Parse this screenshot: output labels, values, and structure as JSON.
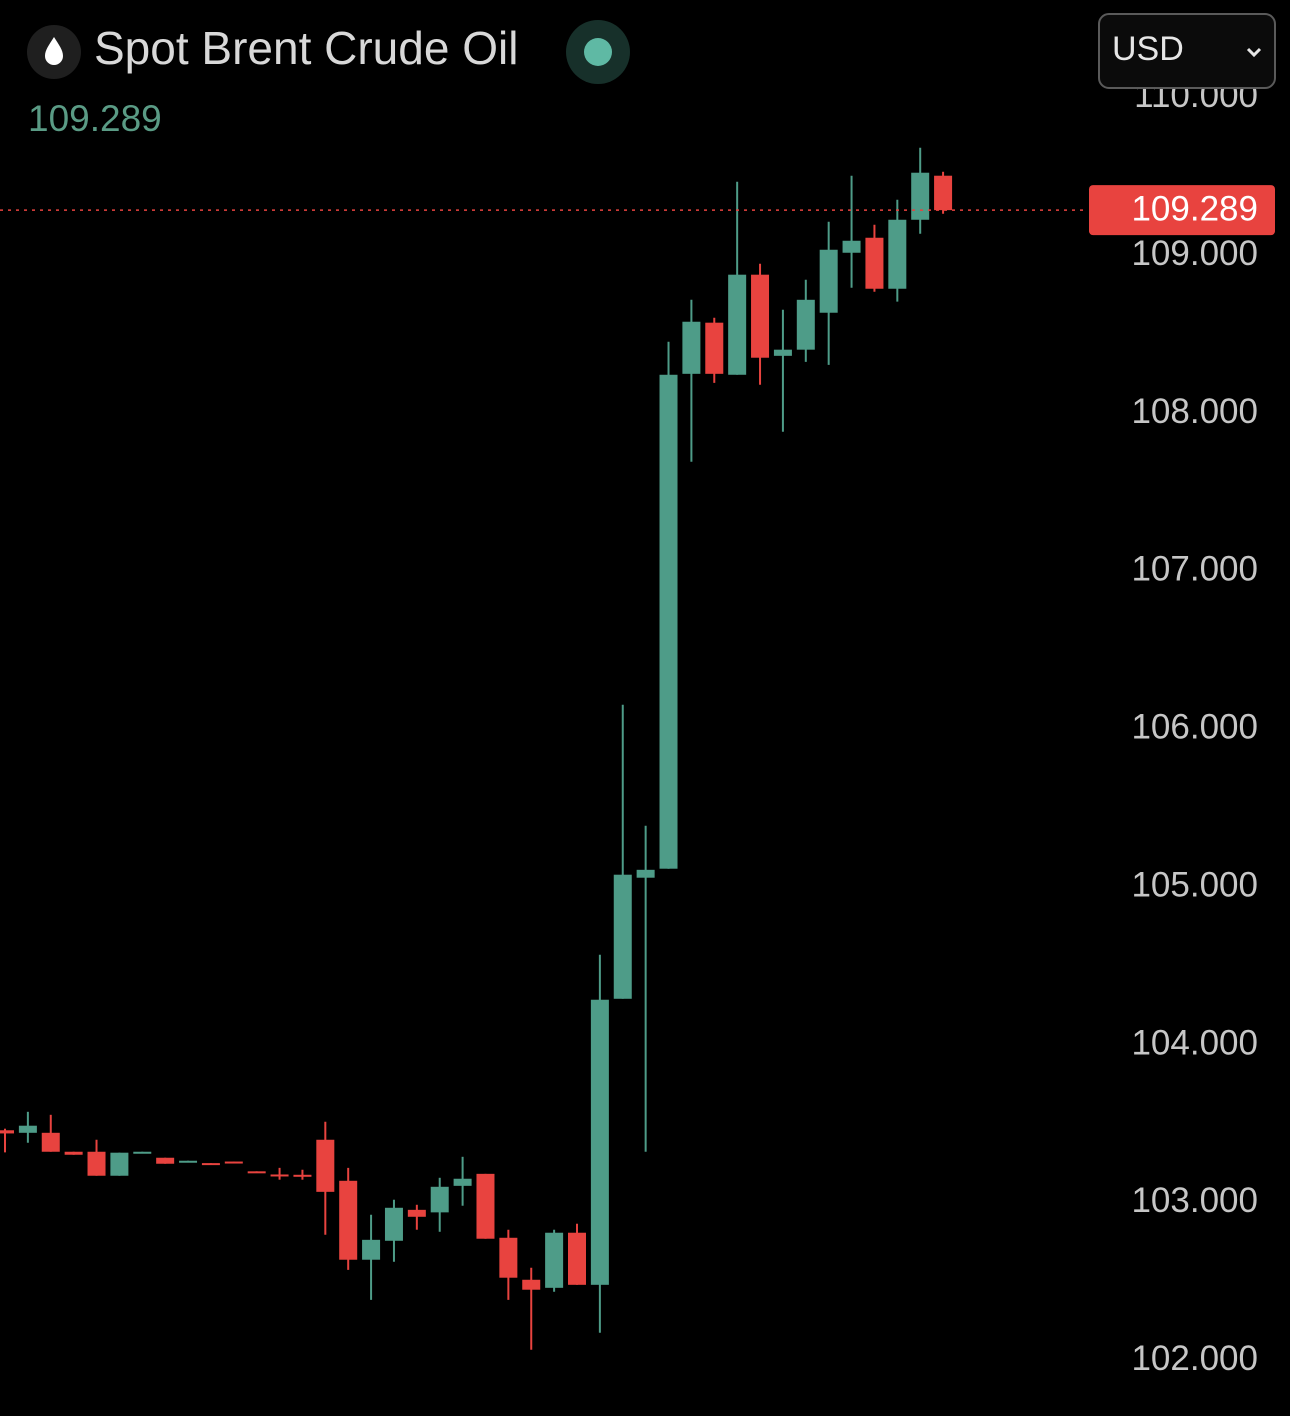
{
  "header": {
    "title": "Spot Brent Crude Oil",
    "currency": "USD"
  },
  "chart_data": {
    "type": "candlestick",
    "open": [
      103.46,
      103.444,
      103.444,
      103.324,
      103.324,
      103.172,
      103.318,
      103.286,
      103.26,
      103.252,
      103.262,
      103.2,
      103.18,
      103.178,
      103.4,
      103.14,
      102.64,
      102.76,
      102.956,
      102.94,
      103.108,
      103.184,
      102.779,
      102.513,
      102.462,
      102.811,
      102.481,
      104.293,
      105.06,
      105.117,
      108.252,
      108.576,
      108.246,
      108.88,
      108.366,
      108.405,
      108.639,
      109.019,
      109.114,
      108.791,
      109.228,
      109.507
    ],
    "high": [
      103.47,
      103.577,
      103.558,
      103.324,
      103.4,
      103.318,
      103.324,
      103.286,
      103.267,
      103.252,
      103.262,
      103.2,
      103.222,
      103.21,
      103.514,
      103.222,
      102.925,
      103.02,
      102.988,
      103.159,
      103.292,
      103.184,
      102.83,
      102.589,
      102.83,
      102.868,
      104.572,
      106.156,
      105.389,
      108.455,
      108.721,
      108.607,
      109.469,
      108.949,
      108.658,
      108.848,
      109.215,
      109.507,
      109.196,
      109.355,
      109.684,
      109.532
    ],
    "low": [
      103.32,
      103.381,
      103.324,
      103.305,
      103.172,
      103.172,
      103.318,
      103.248,
      103.26,
      103.248,
      103.256,
      103.195,
      103.147,
      103.147,
      102.798,
      102.576,
      102.386,
      102.627,
      102.83,
      102.817,
      102.982,
      102.773,
      102.386,
      102.07,
      102.437,
      102.481,
      102.177,
      104.293,
      103.324,
      105.117,
      107.695,
      108.195,
      108.246,
      108.183,
      107.885,
      108.328,
      108.309,
      108.797,
      108.772,
      108.709,
      109.139,
      109.266
    ],
    "close": [
      103.44,
      103.489,
      103.324,
      103.305,
      103.172,
      103.318,
      103.324,
      103.248,
      103.267,
      103.248,
      103.256,
      103.195,
      103.175,
      103.17,
      103.07,
      102.64,
      102.766,
      102.969,
      102.912,
      103.102,
      103.153,
      102.773,
      102.526,
      102.45,
      102.811,
      102.481,
      104.287,
      105.079,
      105.11,
      108.246,
      108.582,
      108.252,
      108.88,
      108.354,
      108.405,
      108.721,
      109.038,
      109.095,
      108.791,
      109.228,
      109.526,
      109.289
    ],
    "up_color": "#4e9c88",
    "down_color": "#e8433f",
    "last_price": 109.289,
    "ylim": [
      101.65,
      110.05
    ],
    "yticks": [
      {
        "value": 102,
        "label": "102.000"
      },
      {
        "value": 103,
        "label": "103.000"
      },
      {
        "value": 104,
        "label": "104.000"
      },
      {
        "value": 105,
        "label": "105.000"
      },
      {
        "value": 106,
        "label": "106.000"
      },
      {
        "value": 107,
        "label": "107.000"
      },
      {
        "value": 108,
        "label": "108.000"
      },
      {
        "value": 109,
        "label": "109.000"
      },
      {
        "value": 110,
        "label": "110.000"
      }
    ],
    "grid": false
  }
}
